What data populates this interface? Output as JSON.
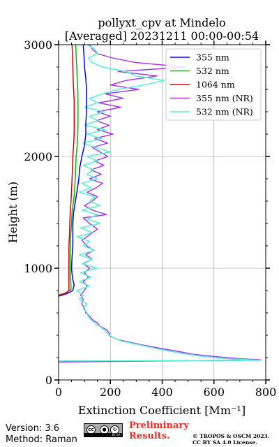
{
  "chart_data": {
    "type": "line",
    "title_line1": "pollyxt_cpv at Mindelo",
    "title_line2": "[Averaged] 20231211 00:00-00:54",
    "xlabel": "Extinction Coefficient [Mm⁻¹]",
    "ylabel": "Height (m)",
    "xlim": [
      0,
      800
    ],
    "ylim": [
      0,
      3000
    ],
    "xticks": [
      0,
      200,
      400,
      600,
      800
    ],
    "yticks": [
      0,
      1000,
      2000,
      3000
    ],
    "grid": true,
    "legend_position": "top-right",
    "series": [
      {
        "name": "355 nm",
        "color": "#0000ff",
        "points": [
          [
            0,
            750
          ],
          [
            30,
            770
          ],
          [
            55,
            800
          ],
          [
            60,
            850
          ],
          [
            55,
            900
          ],
          [
            52,
            950
          ],
          [
            50,
            1000
          ],
          [
            52,
            1100
          ],
          [
            55,
            1200
          ],
          [
            55,
            1300
          ],
          [
            55,
            1400
          ],
          [
            58,
            1500
          ],
          [
            65,
            1600
          ],
          [
            72,
            1700
          ],
          [
            78,
            1800
          ],
          [
            82,
            1900
          ],
          [
            90,
            2000
          ],
          [
            100,
            2100
          ],
          [
            105,
            2200
          ],
          [
            105,
            2300
          ],
          [
            108,
            2400
          ],
          [
            108,
            2500
          ],
          [
            108,
            2600
          ],
          [
            105,
            2700
          ],
          [
            100,
            2800
          ],
          [
            98,
            2900
          ],
          [
            95,
            3000
          ]
        ]
      },
      {
        "name": "532 nm",
        "color": "#00bb00",
        "points": [
          [
            0,
            760
          ],
          [
            30,
            780
          ],
          [
            48,
            810
          ],
          [
            47,
            900
          ],
          [
            45,
            1000
          ],
          [
            45,
            1100
          ],
          [
            46,
            1200
          ],
          [
            47,
            1300
          ],
          [
            50,
            1400
          ],
          [
            52,
            1500
          ],
          [
            58,
            1600
          ],
          [
            62,
            1700
          ],
          [
            64,
            1800
          ],
          [
            66,
            1900
          ],
          [
            68,
            2000
          ],
          [
            72,
            2100
          ],
          [
            74,
            2200
          ],
          [
            75,
            2300
          ],
          [
            75,
            2400
          ],
          [
            75,
            2500
          ],
          [
            74,
            2600
          ],
          [
            72,
            2700
          ],
          [
            70,
            2800
          ],
          [
            68,
            2900
          ],
          [
            66,
            3000
          ]
        ]
      },
      {
        "name": "1064 nm",
        "color": "#dd0000",
        "points": [
          [
            0,
            755
          ],
          [
            25,
            775
          ],
          [
            40,
            800
          ],
          [
            40,
            900
          ],
          [
            40,
            1000
          ],
          [
            40,
            1100
          ],
          [
            40,
            1200
          ],
          [
            42,
            1300
          ],
          [
            43,
            1400
          ],
          [
            45,
            1500
          ],
          [
            48,
            1600
          ],
          [
            50,
            1700
          ],
          [
            52,
            1800
          ],
          [
            54,
            1900
          ],
          [
            55,
            2000
          ],
          [
            58,
            2100
          ],
          [
            60,
            2200
          ],
          [
            60,
            2300
          ],
          [
            60,
            2400
          ],
          [
            60,
            2500
          ],
          [
            58,
            2600
          ],
          [
            56,
            2700
          ],
          [
            55,
            2800
          ],
          [
            54,
            2900
          ],
          [
            52,
            3000
          ]
        ]
      },
      {
        "name": "355 nm (NR)",
        "color": "#a13de6",
        "points": [
          [
            0,
            160
          ],
          [
            780,
            180
          ],
          [
            700,
            190
          ],
          [
            600,
            210
          ],
          [
            520,
            230
          ],
          [
            450,
            260
          ],
          [
            400,
            280
          ],
          [
            330,
            310
          ],
          [
            290,
            330
          ],
          [
            230,
            360
          ],
          [
            200,
            390
          ],
          [
            195,
            420
          ],
          [
            185,
            450
          ],
          [
            160,
            480
          ],
          [
            150,
            510
          ],
          [
            130,
            540
          ],
          [
            120,
            570
          ],
          [
            105,
            600
          ],
          [
            100,
            640
          ],
          [
            90,
            680
          ],
          [
            95,
            720
          ],
          [
            85,
            760
          ],
          [
            100,
            800
          ],
          [
            110,
            840
          ],
          [
            95,
            880
          ],
          [
            115,
            920
          ],
          [
            100,
            960
          ],
          [
            120,
            1000
          ],
          [
            95,
            1040
          ],
          [
            130,
            1080
          ],
          [
            105,
            1120
          ],
          [
            135,
            1160
          ],
          [
            110,
            1200
          ],
          [
            90,
            1250
          ],
          [
            120,
            1300
          ],
          [
            150,
            1350
          ],
          [
            120,
            1400
          ],
          [
            95,
            1450
          ],
          [
            185,
            1480
          ],
          [
            130,
            1520
          ],
          [
            100,
            1560
          ],
          [
            130,
            1600
          ],
          [
            150,
            1640
          ],
          [
            110,
            1680
          ],
          [
            145,
            1720
          ],
          [
            170,
            1760
          ],
          [
            120,
            1800
          ],
          [
            165,
            1840
          ],
          [
            125,
            1880
          ],
          [
            175,
            1920
          ],
          [
            140,
            1960
          ],
          [
            190,
            2000
          ],
          [
            160,
            2040
          ],
          [
            130,
            2080
          ],
          [
            190,
            2120
          ],
          [
            140,
            2160
          ],
          [
            210,
            2200
          ],
          [
            150,
            2240
          ],
          [
            195,
            2280
          ],
          [
            145,
            2320
          ],
          [
            200,
            2360
          ],
          [
            150,
            2400
          ],
          [
            240,
            2440
          ],
          [
            155,
            2480
          ],
          [
            250,
            2520
          ],
          [
            180,
            2560
          ],
          [
            310,
            2600
          ],
          [
            200,
            2640
          ],
          [
            260,
            2680
          ],
          [
            380,
            2720
          ],
          [
            230,
            2760
          ],
          [
            490,
            2800
          ],
          [
            300,
            2840
          ],
          [
            210,
            2880
          ],
          [
            150,
            2920
          ],
          [
            130,
            2960
          ],
          [
            120,
            3000
          ]
        ]
      },
      {
        "name": "532 nm (NR)",
        "color": "#55f0d2",
        "points": [
          [
            0,
            170
          ],
          [
            780,
            175
          ],
          [
            650,
            190
          ],
          [
            560,
            210
          ],
          [
            470,
            240
          ],
          [
            400,
            270
          ],
          [
            340,
            300
          ],
          [
            300,
            320
          ],
          [
            240,
            350
          ],
          [
            210,
            380
          ],
          [
            190,
            410
          ],
          [
            180,
            440
          ],
          [
            165,
            470
          ],
          [
            145,
            500
          ],
          [
            130,
            530
          ],
          [
            115,
            560
          ],
          [
            110,
            600
          ],
          [
            95,
            640
          ],
          [
            110,
            680
          ],
          [
            80,
            720
          ],
          [
            95,
            760
          ],
          [
            70,
            800
          ],
          [
            120,
            840
          ],
          [
            80,
            880
          ],
          [
            125,
            920
          ],
          [
            85,
            960
          ],
          [
            150,
            1000
          ],
          [
            90,
            1040
          ],
          [
            130,
            1080
          ],
          [
            80,
            1120
          ],
          [
            140,
            1160
          ],
          [
            95,
            1200
          ],
          [
            120,
            1240
          ],
          [
            70,
            1280
          ],
          [
            130,
            1320
          ],
          [
            85,
            1360
          ],
          [
            160,
            1400
          ],
          [
            110,
            1440
          ],
          [
            150,
            1480
          ],
          [
            90,
            1520
          ],
          [
            160,
            1560
          ],
          [
            120,
            1600
          ],
          [
            140,
            1640
          ],
          [
            80,
            1680
          ],
          [
            125,
            1720
          ],
          [
            90,
            1760
          ],
          [
            150,
            1800
          ],
          [
            110,
            1840
          ],
          [
            135,
            1880
          ],
          [
            95,
            1920
          ],
          [
            150,
            1960
          ],
          [
            110,
            2000
          ],
          [
            200,
            2040
          ],
          [
            140,
            2080
          ],
          [
            95,
            2120
          ],
          [
            165,
            2160
          ],
          [
            110,
            2200
          ],
          [
            180,
            2240
          ],
          [
            100,
            2280
          ],
          [
            150,
            2320
          ],
          [
            120,
            2360
          ],
          [
            175,
            2400
          ],
          [
            100,
            2440
          ],
          [
            150,
            2480
          ],
          [
            120,
            2520
          ],
          [
            170,
            2560
          ],
          [
            230,
            2600
          ],
          [
            330,
            2640
          ],
          [
            410,
            2680
          ],
          [
            300,
            2720
          ],
          [
            260,
            2760
          ],
          [
            170,
            2800
          ],
          [
            130,
            2840
          ],
          [
            115,
            2880
          ],
          [
            150,
            2920
          ],
          [
            140,
            2960
          ],
          [
            110,
            3000
          ]
        ]
      }
    ]
  },
  "footer": {
    "version": "Version: 3.6",
    "method": "Method: Raman",
    "cc_label": "cc",
    "by_label": "BY",
    "sa_label": "SA",
    "preliminary_line1": "Preliminary",
    "preliminary_line2": "Results.",
    "copyright_line1": "© TROPOS & OSCM 2023.",
    "copyright_line2": "CC BY SA 4.0 License."
  }
}
